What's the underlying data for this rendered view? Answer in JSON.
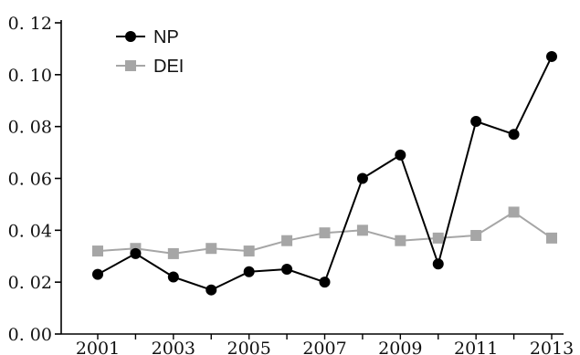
{
  "chart_data": {
    "type": "line",
    "title": "",
    "xlabel": "",
    "ylabel": "",
    "x": [
      2001,
      2002,
      2003,
      2004,
      2005,
      2006,
      2007,
      2008,
      2009,
      2010,
      2011,
      2012,
      2013
    ],
    "x_tick_labels": [
      "2001",
      "2003",
      "2005",
      "2007",
      "2009",
      "2011",
      "2013"
    ],
    "y_tick_labels": [
      "0. 00",
      "0. 02",
      "0. 04",
      "0. 06",
      "0. 08",
      "0. 10",
      "0. 12"
    ],
    "xlim": [
      2001,
      2013
    ],
    "ylim": [
      0,
      0.12
    ],
    "grid": false,
    "legend_position": "top-left",
    "series": [
      {
        "name": "NP",
        "marker": "circle",
        "color": "#000000",
        "values": [
          0.023,
          0.031,
          0.022,
          0.017,
          0.024,
          0.025,
          0.02,
          0.06,
          0.069,
          0.027,
          0.082,
          0.077,
          0.107
        ]
      },
      {
        "name": "DEI",
        "marker": "square",
        "color": "#a6a6a6",
        "values": [
          0.032,
          0.033,
          0.031,
          0.033,
          0.032,
          0.036,
          0.039,
          0.04,
          0.036,
          0.037,
          0.038,
          0.047,
          0.037
        ]
      }
    ]
  }
}
